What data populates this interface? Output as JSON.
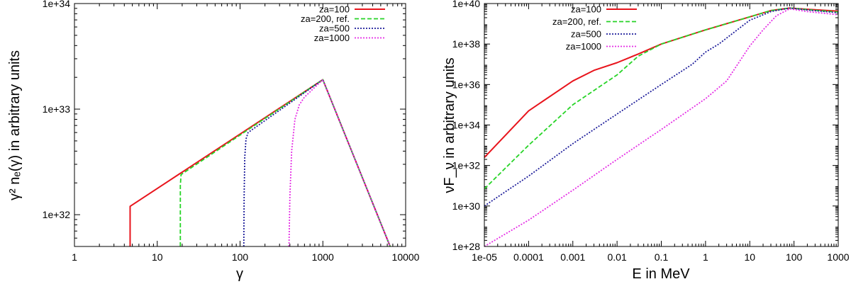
{
  "chart_data": [
    {
      "type": "line",
      "xscale": "log",
      "yscale": "log",
      "xlabel": "γ",
      "ylabel": "γ² nₑ(γ) in arbitrary units",
      "xlim": [
        1,
        10000
      ],
      "ylim": [
        5e+31,
        1e+34
      ],
      "xticks": [
        {
          "v": 1,
          "label": "1"
        },
        {
          "v": 10,
          "label": "10"
        },
        {
          "v": 100,
          "label": "100"
        },
        {
          "v": 1000,
          "label": "1000"
        },
        {
          "v": 10000,
          "label": "10000"
        }
      ],
      "yticks": [
        {
          "v": 1e+32,
          "label": "1e+32"
        },
        {
          "v": 1e+33,
          "label": "1e+33"
        },
        {
          "v": 1e+34,
          "label": "1e+34"
        }
      ],
      "legend_position": "top-right",
      "series": [
        {
          "name": "za=100",
          "color": "#e8141c",
          "dash": "solid",
          "points": [
            [
              4.7,
              5e+31
            ],
            [
              4.7,
              1.2e+32
            ],
            [
              1000,
              1.9e+33
            ],
            [
              6500,
              5e+31
            ]
          ]
        },
        {
          "name": "za=200, ref.",
          "color": "#27d427",
          "dash": "dashed",
          "points": [
            [
              19,
              5e+31
            ],
            [
              19,
              1.9e+32
            ],
            [
              19.4,
              2.4e+32
            ],
            [
              1000,
              1.9e+33
            ],
            [
              6500,
              5e+31
            ]
          ]
        },
        {
          "name": "za=500",
          "color": "#1d1d9a",
          "dash": "dotted",
          "points": [
            [
              111,
              5e+31
            ],
            [
              112,
              1.5e+32
            ],
            [
              114,
              3.5e+32
            ],
            [
              118,
              5.2e+32
            ],
            [
              125,
              6e+32
            ],
            [
              1000,
              1.9e+33
            ],
            [
              6500,
              5e+31
            ]
          ]
        },
        {
          "name": "za=1000",
          "color": "#e52fe5",
          "dash": "dotted",
          "points": [
            [
              390,
              5e+31
            ],
            [
              400,
              1.5e+32
            ],
            [
              420,
              4e+32
            ],
            [
              460,
              8e+32
            ],
            [
              520,
              1.1e+33
            ],
            [
              600,
              1.3e+33
            ],
            [
              1000,
              1.9e+33
            ],
            [
              6500,
              5e+31
            ]
          ]
        }
      ]
    },
    {
      "type": "line",
      "xscale": "log",
      "yscale": "log",
      "xlabel": "E in MeV",
      "ylabel": "νF_ν in arbitrary units",
      "xlim": [
        1e-05,
        1000
      ],
      "ylim": [
        1e+28,
        1e+40
      ],
      "xticks": [
        {
          "v": 1e-05,
          "label": "1e-05"
        },
        {
          "v": 0.0001,
          "label": "0.0001"
        },
        {
          "v": 0.001,
          "label": "0.001"
        },
        {
          "v": 0.01,
          "label": "0.01"
        },
        {
          "v": 0.1,
          "label": "0.1"
        },
        {
          "v": 1,
          "label": "1"
        },
        {
          "v": 10,
          "label": "10"
        },
        {
          "v": 100,
          "label": "100"
        },
        {
          "v": 1000,
          "label": "1000"
        }
      ],
      "yticks": [
        {
          "v": 1e+28,
          "label": "1e+28"
        },
        {
          "v": 1e+30,
          "label": "1e+30"
        },
        {
          "v": 1e+32,
          "label": "1e+32"
        },
        {
          "v": 1e+34,
          "label": "1e+34"
        },
        {
          "v": 1e+36,
          "label": "1e+36"
        },
        {
          "v": 1e+38,
          "label": "1e+38"
        },
        {
          "v": 1e+40,
          "label": "1e+40"
        }
      ],
      "legend_position": "top-left",
      "series": [
        {
          "name": "za=100",
          "color": "#e8141c",
          "dash": "solid",
          "points": [
            [
              1e-05,
              2.5e+32
            ],
            [
              0.0001,
              5e+34
            ],
            [
              0.001,
              1.5e+36
            ],
            [
              0.003,
              5e+36
            ],
            [
              0.01,
              1.2e+37
            ],
            [
              0.03,
              3.2e+37
            ],
            [
              0.1,
              1e+38
            ],
            [
              1,
              5e+38
            ],
            [
              10,
              2.2e+39
            ],
            [
              30,
              4.5e+39
            ],
            [
              80,
              6e+39
            ],
            [
              200,
              5.2e+39
            ],
            [
              1000,
              4.2e+39
            ]
          ]
        },
        {
          "name": "za=200, ref.",
          "color": "#27d427",
          "dash": "dashed",
          "points": [
            [
              1e-05,
              7e+30
            ],
            [
              0.0001,
              1e+33
            ],
            [
              0.001,
              1e+35
            ],
            [
              0.01,
              3e+36
            ],
            [
              0.03,
              2.5e+37
            ],
            [
              0.1,
              1e+38
            ],
            [
              1,
              5e+38
            ],
            [
              10,
              2.2e+39
            ],
            [
              30,
              4.5e+39
            ],
            [
              80,
              6e+39
            ],
            [
              200,
              5e+39
            ],
            [
              1000,
              3.8e+39
            ]
          ]
        },
        {
          "name": "za=500",
          "color": "#1d1d9a",
          "dash": "dotted",
          "points": [
            [
              1e-05,
              1e+30
            ],
            [
              0.0001,
              3e+31
            ],
            [
              0.001,
              1.2e+33
            ],
            [
              0.01,
              3.5e+34
            ],
            [
              0.1,
              1e+36
            ],
            [
              0.5,
              1e+37
            ],
            [
              1,
              4e+37
            ],
            [
              2,
              1e+38
            ],
            [
              10,
              1.5e+39
            ],
            [
              30,
              4e+39
            ],
            [
              80,
              6e+39
            ],
            [
              200,
              4.8e+39
            ],
            [
              1000,
              3.5e+39
            ]
          ]
        },
        {
          "name": "za=1000",
          "color": "#e52fe5",
          "dash": "dotted",
          "points": [
            [
              1e-05,
              1e+28
            ],
            [
              0.0001,
              2e+29
            ],
            [
              0.001,
              6e+30
            ],
            [
              0.01,
              2e+32
            ],
            [
              0.1,
              6e+33
            ],
            [
              1,
              2e+35
            ],
            [
              3,
              1.5e+36
            ],
            [
              10,
              8e+37
            ],
            [
              20,
              5e+38
            ],
            [
              40,
              2.5e+39
            ],
            [
              80,
              5.5e+39
            ],
            [
              200,
              4e+39
            ],
            [
              1000,
              2.8e+39
            ]
          ]
        }
      ]
    }
  ]
}
